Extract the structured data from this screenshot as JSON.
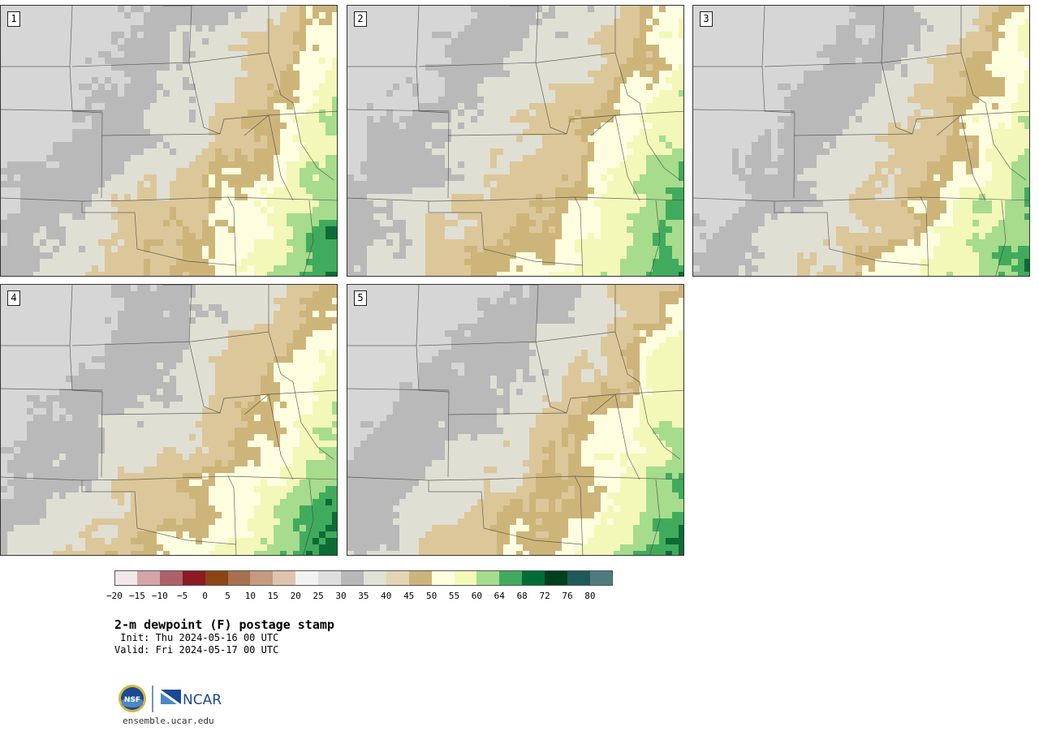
{
  "panels": [
    {
      "label": "1",
      "variant": 0
    },
    {
      "label": "2",
      "variant": 1
    },
    {
      "label": "3",
      "variant": 2
    },
    {
      "label": "4",
      "variant": 3
    },
    {
      "label": "5",
      "variant": 4
    }
  ],
  "colorbar": {
    "colors": [
      "#f3e8e8",
      "#d4a5a8",
      "#b0606a",
      "#8b1a22",
      "#8b4513",
      "#a8704e",
      "#c49a80",
      "#dfc3b0",
      "#f2f2f2",
      "#dedede",
      "#b8b8b8",
      "#e2e1d6",
      "#e2d6b2",
      "#cdb57a",
      "#ffffe0",
      "#f5fab8",
      "#a6dc8c",
      "#41ab5d",
      "#006d38",
      "#00401f",
      "#1e5a5a",
      "#4f7b80"
    ],
    "tick_labels": [
      "−20",
      "−15",
      "−10",
      "−5",
      "0",
      "5",
      "10",
      "15",
      "20",
      "25",
      "30",
      "35",
      "40",
      "45",
      "50",
      "55",
      "60",
      "64",
      "68",
      "72",
      "76",
      "80"
    ]
  },
  "legend": {
    "low": "#f3e8e8",
    "mid_dry": "#cdb57a",
    "mid_moist": "#f5fab8",
    "high": "#006d38"
  },
  "text": {
    "title": "2-m dewpoint (F) postage stamp",
    "init": " Init: Thu 2024-05-16 00 UTC",
    "valid": "Valid: Fri 2024-05-17 00 UTC"
  },
  "logos": {
    "nsf": "NSF",
    "ncar": "NCAR",
    "url": "ensemble.ucar.edu"
  }
}
